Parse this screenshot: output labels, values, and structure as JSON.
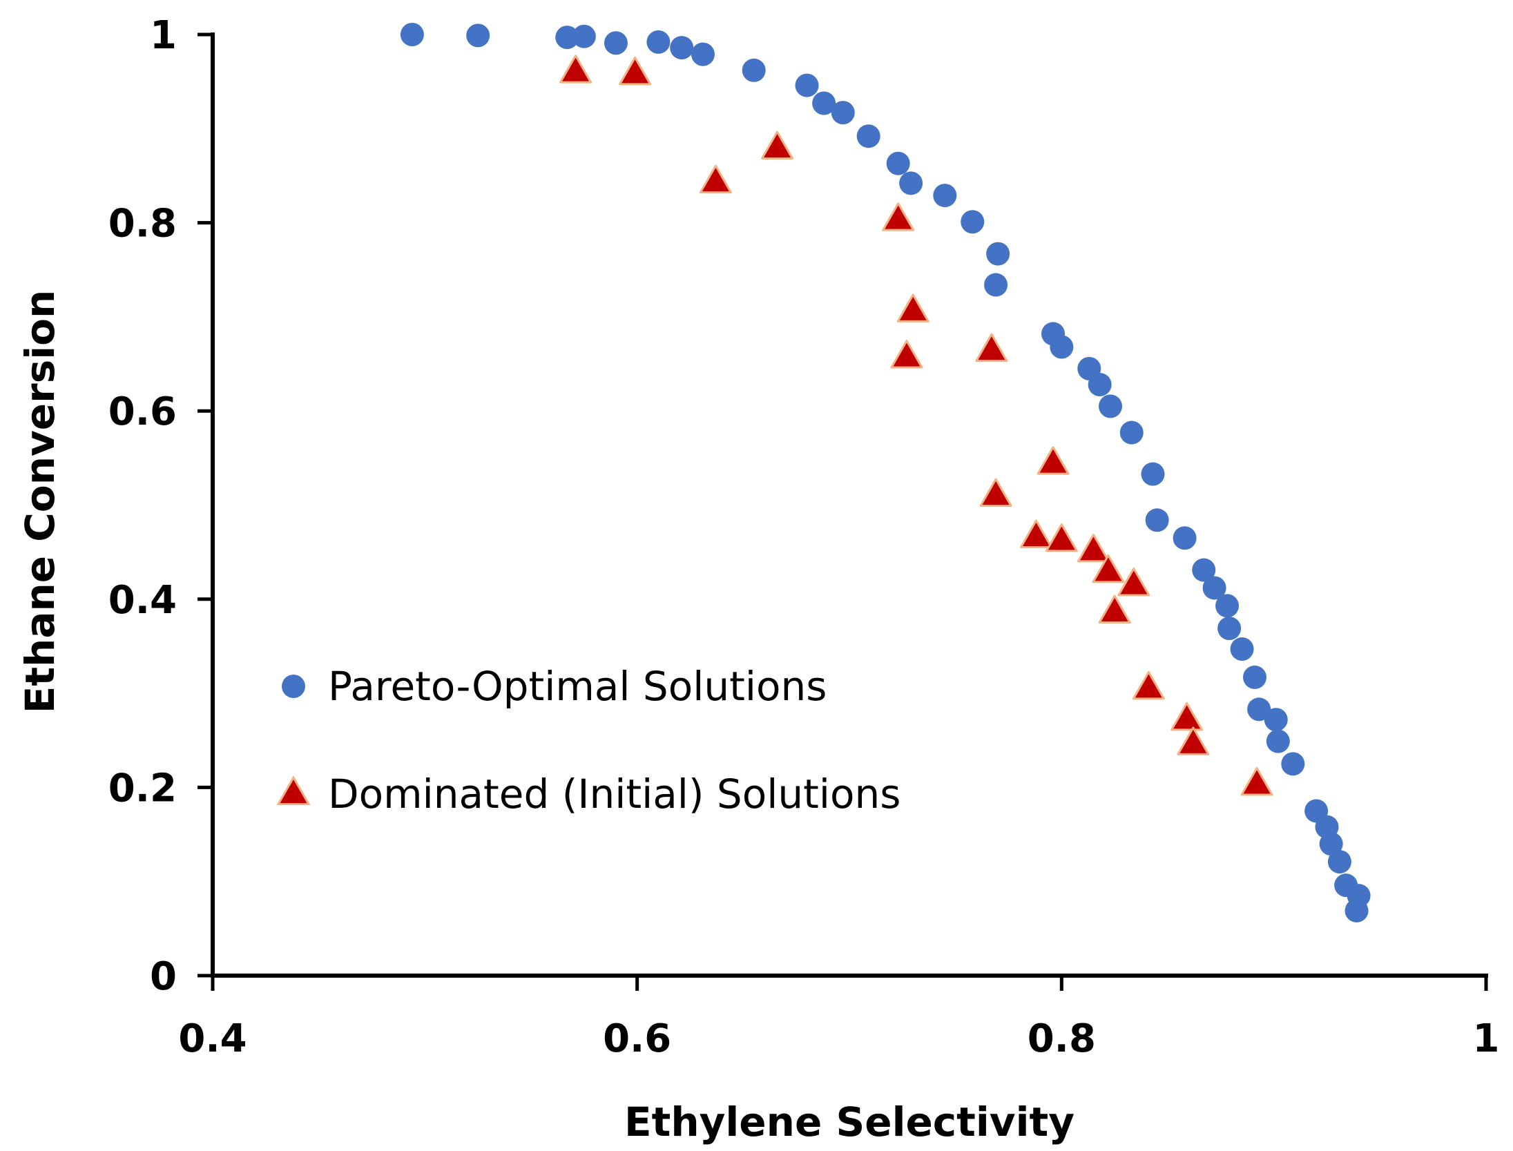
{
  "chart_data": {
    "type": "scatter",
    "title": "",
    "xlabel": "Ethylene Selectivity",
    "ylabel": "Ethane Conversion",
    "xlim": [
      0.4,
      1.0
    ],
    "ylim": [
      0,
      1.0
    ],
    "x_ticks": [
      {
        "value": 0.4,
        "label": "0.4"
      },
      {
        "value": 0.6,
        "label": "0.6"
      },
      {
        "value": 0.8,
        "label": "0.8"
      },
      {
        "value": 1.0,
        "label": "1"
      }
    ],
    "y_ticks": [
      {
        "value": 0,
        "label": "0"
      },
      {
        "value": 0.2,
        "label": "0.2"
      },
      {
        "value": 0.4,
        "label": "0.4"
      },
      {
        "value": 0.6,
        "label": "0.6"
      },
      {
        "value": 0.8,
        "label": "0.8"
      },
      {
        "value": 1.0,
        "label": "1"
      }
    ],
    "grid": false,
    "legend_position": "center-left",
    "series": [
      {
        "name": "Pareto-Optimal Solutions",
        "marker": "circle",
        "color": "#4472C4",
        "points": [
          [
            0.494,
            1.0
          ],
          [
            0.525,
            0.999
          ],
          [
            0.567,
            0.997
          ],
          [
            0.575,
            0.998
          ],
          [
            0.59,
            0.991
          ],
          [
            0.61,
            0.992
          ],
          [
            0.621,
            0.986
          ],
          [
            0.631,
            0.979
          ],
          [
            0.655,
            0.962
          ],
          [
            0.68,
            0.946
          ],
          [
            0.688,
            0.927
          ],
          [
            0.697,
            0.917
          ],
          [
            0.709,
            0.892
          ],
          [
            0.723,
            0.863
          ],
          [
            0.729,
            0.842
          ],
          [
            0.745,
            0.829
          ],
          [
            0.758,
            0.801
          ],
          [
            0.77,
            0.767
          ],
          [
            0.769,
            0.734
          ],
          [
            0.796,
            0.682
          ],
          [
            0.8,
            0.668
          ],
          [
            0.813,
            0.645
          ],
          [
            0.818,
            0.628
          ],
          [
            0.823,
            0.605
          ],
          [
            0.833,
            0.577
          ],
          [
            0.843,
            0.533
          ],
          [
            0.845,
            0.484
          ],
          [
            0.858,
            0.465
          ],
          [
            0.867,
            0.431
          ],
          [
            0.872,
            0.412
          ],
          [
            0.878,
            0.393
          ],
          [
            0.879,
            0.369
          ],
          [
            0.885,
            0.347
          ],
          [
            0.891,
            0.317
          ],
          [
            0.893,
            0.283
          ],
          [
            0.901,
            0.272
          ],
          [
            0.902,
            0.249
          ],
          [
            0.909,
            0.225
          ],
          [
            0.92,
            0.175
          ],
          [
            0.925,
            0.158
          ],
          [
            0.927,
            0.14
          ],
          [
            0.931,
            0.121
          ],
          [
            0.934,
            0.096
          ],
          [
            0.94,
            0.085
          ],
          [
            0.939,
            0.069
          ]
        ]
      },
      {
        "name": "Dominated (Initial) Solutions",
        "marker": "triangle",
        "color": "#C00000",
        "edge_color": "#F4B183",
        "points": [
          [
            0.571,
            0.96
          ],
          [
            0.599,
            0.958
          ],
          [
            0.637,
            0.843
          ],
          [
            0.666,
            0.879
          ],
          [
            0.723,
            0.803
          ],
          [
            0.73,
            0.706
          ],
          [
            0.727,
            0.657
          ],
          [
            0.767,
            0.664
          ],
          [
            0.769,
            0.51
          ],
          [
            0.796,
            0.544
          ],
          [
            0.788,
            0.466
          ],
          [
            0.8,
            0.462
          ],
          [
            0.815,
            0.451
          ],
          [
            0.822,
            0.429
          ],
          [
            0.834,
            0.415
          ],
          [
            0.825,
            0.386
          ],
          [
            0.841,
            0.305
          ],
          [
            0.859,
            0.272
          ],
          [
            0.862,
            0.246
          ],
          [
            0.892,
            0.203
          ]
        ]
      }
    ]
  }
}
